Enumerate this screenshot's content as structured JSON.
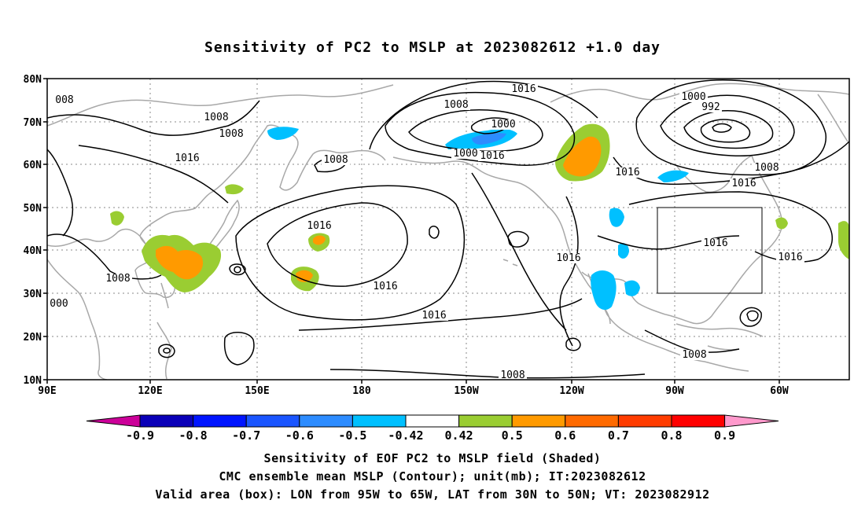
{
  "title": "Sensitivity of PC2 to MSLP at 2023082612 +1.0 day",
  "footer": {
    "line1": "Sensitivity of EOF PC2 to MSLP field (Shaded)",
    "line2": "CMC ensemble mean MSLP (Contour); unit(mb); IT:2023082612",
    "line3": "Valid area (box): LON from 95W to 65W, LAT from 30N to 50N; VT: 2023082912"
  },
  "map": {
    "lat_ticks": [
      "80N",
      "70N",
      "60N",
      "50N",
      "40N",
      "30N",
      "20N",
      "10N"
    ],
    "lon_ticks": [
      "90E",
      "120E",
      "150E",
      "180",
      "150W",
      "120W",
      "90W",
      "60W"
    ],
    "contour_labels": [
      "008",
      "1008",
      "1008",
      "1016",
      "1008",
      "1016",
      "1008",
      "000",
      "1016",
      "1016",
      "1008",
      "1000",
      "1000",
      "1016",
      "1016",
      "1000",
      "992",
      "1008",
      "1016",
      "1016",
      "1016",
      "1016",
      "1016",
      "1008",
      "1008"
    ],
    "valid_area_box": {
      "lon_min": -95,
      "lon_max": -65,
      "lat_min": 30,
      "lat_max": 50
    },
    "colorbar": {
      "labels": [
        "-0.9",
        "-0.8",
        "-0.7",
        "-0.6",
        "-0.5",
        "-0.42",
        "0.42",
        "0.5",
        "0.6",
        "0.7",
        "0.8",
        "0.9"
      ],
      "colors": [
        "#0a00b8",
        "#0014ff",
        "#1a55ff",
        "#2d8cff",
        "#00c0ff",
        "#ffffff",
        "#9acd32",
        "#ff9a00",
        "#ff6a00",
        "#ff3c00",
        "#ff0000"
      ],
      "left_tip_color": "#cc0099",
      "right_tip_color": "#ff99cc"
    }
  }
}
